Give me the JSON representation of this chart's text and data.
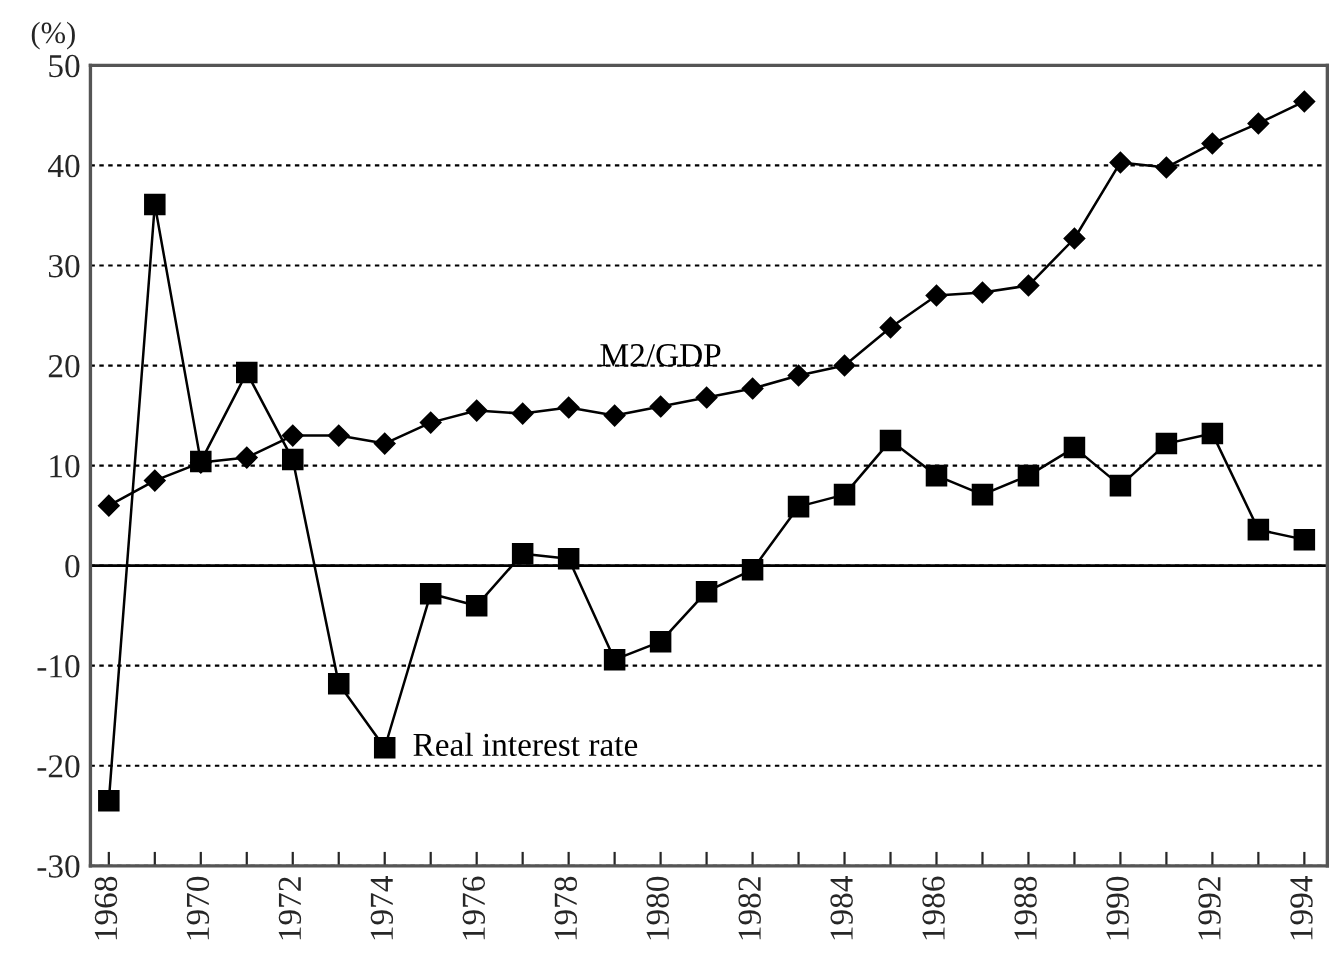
{
  "chart_data": {
    "type": "line",
    "ylabel": "(%)",
    "x": [
      1968,
      1969,
      1970,
      1971,
      1972,
      1973,
      1974,
      1975,
      1976,
      1977,
      1978,
      1979,
      1980,
      1981,
      1982,
      1983,
      1984,
      1985,
      1986,
      1987,
      1988,
      1989,
      1990,
      1991,
      1992,
      1993,
      1994
    ],
    "series": [
      {
        "name": "M2/GDP",
        "color": "#000000",
        "marker": "diamond",
        "values": [
          6,
          8.5,
          10.3,
          10.8,
          13,
          13,
          12.2,
          14.3,
          15.5,
          15.2,
          15.8,
          15,
          15.9,
          16.8,
          17.7,
          19,
          20,
          23.8,
          27,
          27.3,
          28,
          32.7,
          40.3,
          39.8,
          42.2,
          44.2,
          46.4
        ]
      },
      {
        "name": "Real interest rate",
        "color": "#000000",
        "marker": "square",
        "values": [
          -23.5,
          36.1,
          10.4,
          19.3,
          10.6,
          -11.8,
          -18.2,
          -2.8,
          -4,
          1.2,
          0.7,
          -9.4,
          -7.6,
          -2.6,
          -0.4,
          5.9,
          7.1,
          12.5,
          9,
          7.1,
          9,
          11.8,
          8,
          12.2,
          13.2,
          3.6,
          2.6
        ]
      }
    ],
    "xlim": [
      1967.6,
      1994.5
    ],
    "xticks": [
      1968,
      {
        "value": 1969,
        "label": null
      },
      1970,
      {
        "value": 1971,
        "label": null
      },
      1972,
      {
        "value": 1973,
        "label": null
      },
      1974,
      {
        "value": 1975,
        "label": null
      },
      1976,
      {
        "value": 1977,
        "label": null
      },
      1978,
      {
        "value": 1979,
        "label": null
      },
      1980,
      {
        "value": 1981,
        "label": null
      },
      1982,
      {
        "value": 1983,
        "label": null
      },
      1984,
      {
        "value": 1985,
        "label": null
      },
      1986,
      {
        "value": 1987,
        "label": null
      },
      1988,
      {
        "value": 1989,
        "label": null
      },
      1990,
      {
        "value": 1991,
        "label": null
      },
      1992,
      {
        "value": 1993,
        "label": null
      },
      1994
    ],
    "ylim": [
      -30,
      50
    ],
    "yticks": [
      -30,
      -20,
      -10,
      0,
      10,
      20,
      30,
      40,
      50
    ],
    "grid": "y",
    "line_style": "solid",
    "ref_lines": [
      {
        "axis": "y",
        "value": 0,
        "color": "#000000",
        "line_style": "solid"
      }
    ]
  }
}
